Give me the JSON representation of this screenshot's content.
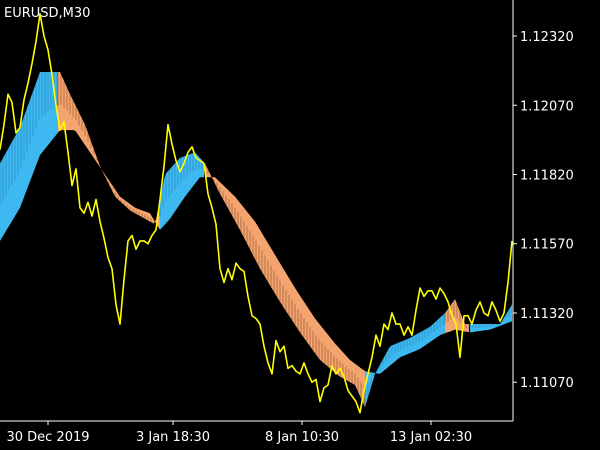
{
  "chart_title": "EURUSD,M30",
  "chart_data": {
    "type": "line",
    "title": "EURUSD,M30",
    "y_ticks": [
      "1.12320",
      "1.12070",
      "1.11820",
      "1.11570",
      "1.11320",
      "1.11070"
    ],
    "y_tick_values": [
      1.1232,
      1.1207,
      1.1182,
      1.1157,
      1.1132,
      1.1107
    ],
    "x_ticks": [
      "30 Dec 2019",
      "3 Jan 18:30",
      "8 Jan 10:30",
      "13 Jan 02:30"
    ],
    "ylim": [
      1.1093,
      1.1245
    ],
    "colors": {
      "price": "#FFFF00",
      "ribbon_up": "#3DB8F0",
      "ribbon_down": "#F4A46E",
      "up_mesh": "#1E6FA8",
      "down_mesh": "#5A2E12",
      "axis": "#FFFFFF",
      "background": "#000000"
    },
    "series": [
      {
        "role": "price",
        "values": [
          [
            0,
            1.1191
          ],
          [
            4,
            1.12
          ],
          [
            8,
            1.1211
          ],
          [
            12,
            1.1208
          ],
          [
            16,
            1.1197
          ],
          [
            20,
            1.1199
          ],
          [
            24,
            1.1209
          ],
          [
            28,
            1.1215
          ],
          [
            32,
            1.1222
          ],
          [
            36,
            1.123
          ],
          [
            40,
            1.124
          ],
          [
            44,
            1.1232
          ],
          [
            48,
            1.1227
          ],
          [
            52,
            1.1218
          ],
          [
            56,
            1.1207
          ],
          [
            60,
            1.1198
          ],
          [
            64,
            1.1201
          ],
          [
            68,
            1.119
          ],
          [
            72,
            1.1178
          ],
          [
            76,
            1.1184
          ],
          [
            80,
            1.117
          ],
          [
            84,
            1.1168
          ],
          [
            88,
            1.1172
          ],
          [
            92,
            1.1167
          ],
          [
            96,
            1.1173
          ],
          [
            100,
            1.1165
          ],
          [
            104,
            1.1159
          ],
          [
            108,
            1.1152
          ],
          [
            112,
            1.1148
          ],
          [
            116,
            1.1135
          ],
          [
            120,
            1.1128
          ],
          [
            124,
            1.1144
          ],
          [
            128,
            1.1158
          ],
          [
            132,
            1.116
          ],
          [
            136,
            1.1155
          ],
          [
            140,
            1.1158
          ],
          [
            144,
            1.1158
          ],
          [
            148,
            1.1157
          ],
          [
            152,
            1.116
          ],
          [
            156,
            1.1162
          ],
          [
            160,
            1.1173
          ],
          [
            164,
            1.1185
          ],
          [
            168,
            1.12
          ],
          [
            172,
            1.1193
          ],
          [
            176,
            1.1187
          ],
          [
            180,
            1.1183
          ],
          [
            184,
            1.1186
          ],
          [
            188,
            1.119
          ],
          [
            192,
            1.1192
          ],
          [
            196,
            1.1188
          ],
          [
            200,
            1.1187
          ],
          [
            204,
            1.1186
          ],
          [
            208,
            1.1175
          ],
          [
            212,
            1.117
          ],
          [
            216,
            1.1164
          ],
          [
            220,
            1.1148
          ],
          [
            224,
            1.1143
          ],
          [
            228,
            1.1148
          ],
          [
            232,
            1.1144
          ],
          [
            236,
            1.115
          ],
          [
            240,
            1.1148
          ],
          [
            244,
            1.1147
          ],
          [
            248,
            1.1138
          ],
          [
            252,
            1.1131
          ],
          [
            256,
            1.113
          ],
          [
            260,
            1.1128
          ],
          [
            264,
            1.112
          ],
          [
            268,
            1.1114
          ],
          [
            272,
            1.111
          ],
          [
            276,
            1.1122
          ],
          [
            280,
            1.1118
          ],
          [
            284,
            1.112
          ],
          [
            288,
            1.1112
          ],
          [
            292,
            1.1113
          ],
          [
            296,
            1.1111
          ],
          [
            300,
            1.111
          ],
          [
            304,
            1.1114
          ],
          [
            308,
            1.111
          ],
          [
            312,
            1.1107
          ],
          [
            316,
            1.1108
          ],
          [
            320,
            1.11
          ],
          [
            324,
            1.1105
          ],
          [
            328,
            1.1106
          ],
          [
            332,
            1.1113
          ],
          [
            336,
            1.111
          ],
          [
            340,
            1.1112
          ],
          [
            344,
            1.1109
          ],
          [
            348,
            1.1104
          ],
          [
            352,
            1.1102
          ],
          [
            356,
            1.11
          ],
          [
            360,
            1.1096
          ],
          [
            364,
            1.1104
          ],
          [
            368,
            1.111
          ],
          [
            372,
            1.1116
          ],
          [
            376,
            1.1124
          ],
          [
            380,
            1.112
          ],
          [
            384,
            1.1128
          ],
          [
            388,
            1.1126
          ],
          [
            392,
            1.1132
          ],
          [
            396,
            1.1128
          ],
          [
            400,
            1.1128
          ],
          [
            404,
            1.1124
          ],
          [
            408,
            1.1127
          ],
          [
            412,
            1.1124
          ],
          [
            416,
            1.1133
          ],
          [
            420,
            1.1141
          ],
          [
            424,
            1.1138
          ],
          [
            428,
            1.114
          ],
          [
            432,
            1.114
          ],
          [
            436,
            1.1137
          ],
          [
            440,
            1.1141
          ],
          [
            444,
            1.1139
          ],
          [
            448,
            1.1136
          ],
          [
            452,
            1.1131
          ],
          [
            456,
            1.1128
          ],
          [
            460,
            1.1116
          ],
          [
            464,
            1.1131
          ],
          [
            468,
            1.1131
          ],
          [
            472,
            1.1128
          ],
          [
            476,
            1.1133
          ],
          [
            480,
            1.1136
          ],
          [
            484,
            1.1132
          ],
          [
            488,
            1.1131
          ],
          [
            492,
            1.1136
          ],
          [
            496,
            1.1133
          ],
          [
            500,
            1.1129
          ],
          [
            504,
            1.1132
          ],
          [
            508,
            1.1143
          ],
          [
            512,
            1.1158
          ]
        ]
      },
      {
        "role": "ribbon_fast",
        "values": [
          [
            0,
            1.1186
          ],
          [
            20,
            1.1199
          ],
          [
            40,
            1.1219
          ],
          [
            60,
            1.1219
          ],
          [
            70,
            1.1211
          ],
          [
            85,
            1.12
          ],
          [
            100,
            1.1185
          ],
          [
            115,
            1.1174
          ],
          [
            130,
            1.1169
          ],
          [
            145,
            1.1166
          ],
          [
            155,
            1.1164
          ],
          [
            165,
            1.1182
          ],
          [
            180,
            1.1188
          ],
          [
            195,
            1.119
          ],
          [
            205,
            1.1186
          ],
          [
            220,
            1.1175
          ],
          [
            240,
            1.1162
          ],
          [
            260,
            1.1148
          ],
          [
            280,
            1.1136
          ],
          [
            300,
            1.1125
          ],
          [
            320,
            1.1115
          ],
          [
            340,
            1.1109
          ],
          [
            355,
            1.1106
          ],
          [
            365,
            1.1098
          ],
          [
            375,
            1.111
          ],
          [
            390,
            1.112
          ],
          [
            410,
            1.1123
          ],
          [
            430,
            1.1127
          ],
          [
            445,
            1.1132
          ],
          [
            455,
            1.1137
          ],
          [
            465,
            1.1128
          ],
          [
            480,
            1.1128
          ],
          [
            500,
            1.1128
          ],
          [
            512,
            1.1135
          ]
        ]
      },
      {
        "role": "ribbon_slow",
        "values": [
          [
            0,
            1.1158
          ],
          [
            20,
            1.117
          ],
          [
            40,
            1.1189
          ],
          [
            60,
            1.1198
          ],
          [
            75,
            1.1198
          ],
          [
            90,
            1.119
          ],
          [
            105,
            1.1182
          ],
          [
            120,
            1.1174
          ],
          [
            135,
            1.117
          ],
          [
            150,
            1.1168
          ],
          [
            160,
            1.1162
          ],
          [
            170,
            1.1166
          ],
          [
            185,
            1.1174
          ],
          [
            200,
            1.1181
          ],
          [
            215,
            1.1181
          ],
          [
            235,
            1.1174
          ],
          [
            255,
            1.1165
          ],
          [
            275,
            1.1153
          ],
          [
            295,
            1.1141
          ],
          [
            315,
            1.113
          ],
          [
            335,
            1.1121
          ],
          [
            350,
            1.1115
          ],
          [
            365,
            1.1111
          ],
          [
            380,
            1.111
          ],
          [
            400,
            1.1116
          ],
          [
            420,
            1.1119
          ],
          [
            440,
            1.1124
          ],
          [
            455,
            1.1126
          ],
          [
            470,
            1.1125
          ],
          [
            490,
            1.1126
          ],
          [
            512,
            1.1129
          ]
        ]
      }
    ],
    "ribbon_color_segments": [
      {
        "from": 0,
        "to": 58,
        "trend": "up"
      },
      {
        "from": 58,
        "to": 160,
        "trend": "down"
      },
      {
        "from": 160,
        "to": 205,
        "trend": "up"
      },
      {
        "from": 205,
        "to": 365,
        "trend": "down"
      },
      {
        "from": 365,
        "to": 445,
        "trend": "up"
      },
      {
        "from": 445,
        "to": 470,
        "trend": "down"
      },
      {
        "from": 470,
        "to": 512,
        "trend": "up"
      }
    ]
  }
}
